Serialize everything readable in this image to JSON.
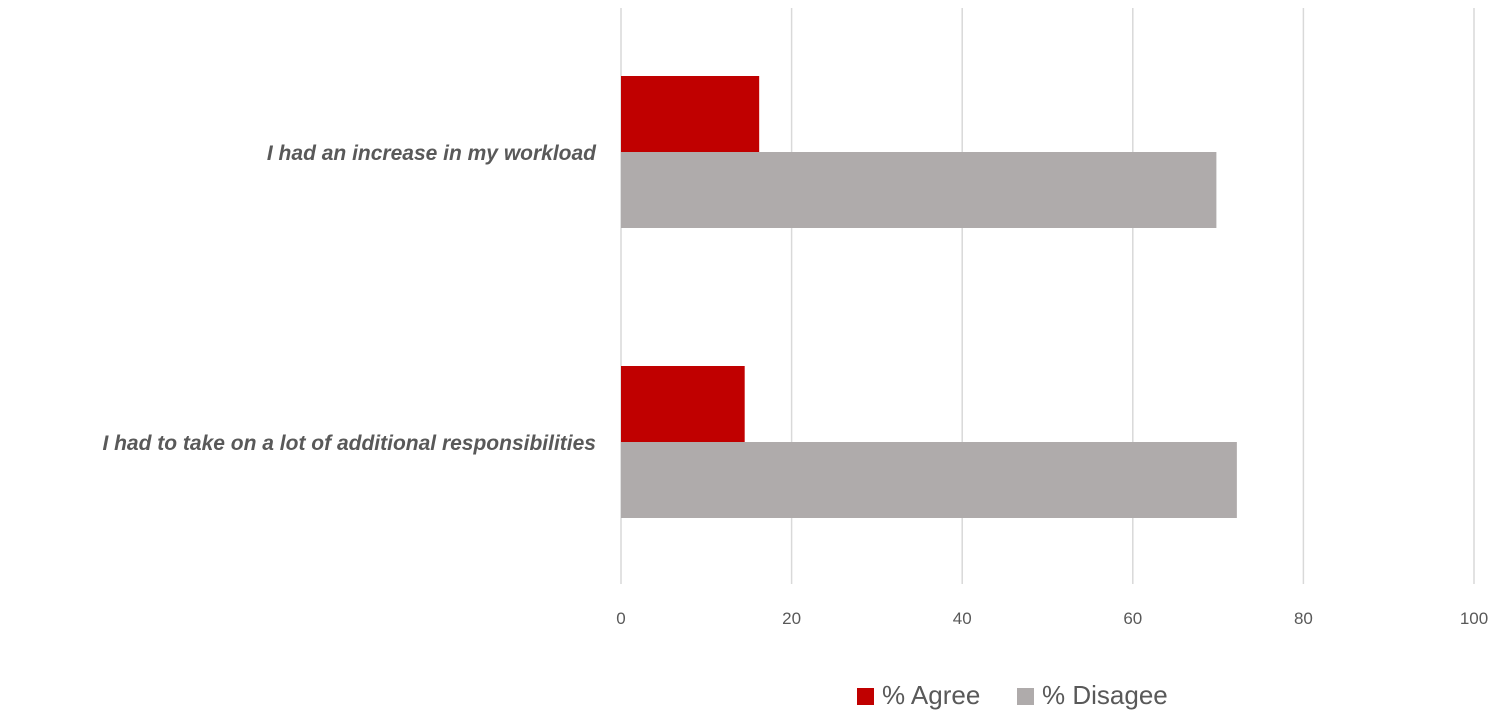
{
  "chart_data": {
    "type": "bar",
    "orientation": "horizontal",
    "categories": [
      "I had an increase in my workload",
      "I had to take on a lot of additional responsibilities"
    ],
    "series": [
      {
        "name": "% Agree",
        "values": [
          16.2,
          14.5
        ],
        "color": "#c00000"
      },
      {
        "name": "% Disagee",
        "values": [
          69.8,
          72.2
        ],
        "color": "#afabab"
      }
    ],
    "xlim": [
      0,
      100
    ],
    "xticks": [
      0,
      20,
      40,
      60,
      80,
      100
    ],
    "grid": true,
    "legend": "bottom-right"
  }
}
